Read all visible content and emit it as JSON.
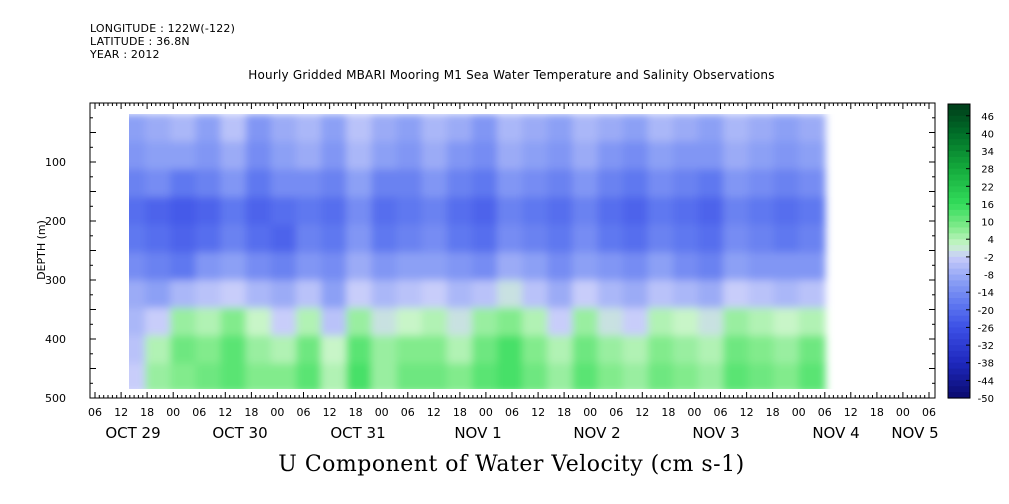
{
  "header": {
    "longitude": "LONGITUDE : 122W(-122)",
    "latitude": "LATITUDE : 36.8N",
    "year": "YEAR : 2012"
  },
  "chart_data": {
    "type": "heatmap",
    "title": "Hourly Gridded MBARI Mooring M1 Sea Water Temperature and Salinity Observations",
    "xlabel": "U Component of Water Velocity (cm s-1)",
    "ylabel": "DEPTH (m)",
    "ylim": [
      500,
      0
    ],
    "y_ticks": [
      100,
      200,
      300,
      400,
      500
    ],
    "x_hour_ticks": [
      "06",
      "12",
      "18",
      "00",
      "06",
      "12",
      "18",
      "00",
      "06",
      "12",
      "18",
      "00",
      "06",
      "12",
      "18",
      "00",
      "06",
      "12",
      "18",
      "00",
      "06",
      "12",
      "18",
      "00",
      "06",
      "12",
      "18",
      "00",
      "06",
      "12",
      "18",
      "00",
      "06"
    ],
    "date_labels": [
      "OCT 29",
      "OCT 30",
      "OCT 31",
      "NOV  1",
      "NOV  2",
      "NOV  3",
      "NOV  4",
      "NOV 5"
    ],
    "colorbar": {
      "levels": [
        "46",
        "40",
        "34",
        "28",
        "22",
        "16",
        "10",
        "4",
        "-2",
        "-8",
        "-14",
        "-20",
        "-26",
        "-32",
        "-38",
        "-44",
        "-50"
      ],
      "min": -50,
      "max": 50
    },
    "data_extent": {
      "time_start": "2012-10-29 12:00",
      "time_end": "2012-11-05 06:00",
      "depth_top": 20,
      "depth_bottom": 490
    },
    "velocity_field": {
      "description_of_values": "U velocity (cm/s) on a time x depth grid; cells listed as [day-column index 0..27 (6-hourly from OCT 29 12:00), depth row 0..9 (every 50 m from 20 m)]",
      "rows_depth_m": [
        20,
        70,
        120,
        170,
        220,
        270,
        320,
        370,
        420,
        470
      ],
      "values": [
        [
          -10,
          -12,
          -16,
          -20,
          -18,
          -14,
          -8,
          -6,
          -4,
          -2
        ],
        [
          -8,
          -10,
          -14,
          -22,
          -20,
          -16,
          -10,
          -2,
          4,
          6
        ],
        [
          -6,
          -10,
          -18,
          -24,
          -22,
          -18,
          -6,
          6,
          10,
          8
        ],
        [
          -10,
          -12,
          -16,
          -22,
          -20,
          -12,
          -4,
          4,
          8,
          10
        ],
        [
          -4,
          -8,
          -12,
          -18,
          -16,
          -10,
          -2,
          8,
          12,
          12
        ],
        [
          -12,
          -14,
          -18,
          -22,
          -20,
          -14,
          -6,
          2,
          6,
          8
        ],
        [
          -8,
          -10,
          -14,
          -20,
          -22,
          -16,
          -8,
          -2,
          4,
          8
        ],
        [
          -6,
          -8,
          -14,
          -18,
          -16,
          -12,
          -4,
          4,
          10,
          12
        ],
        [
          -10,
          -12,
          -16,
          -20,
          -18,
          -14,
          -10,
          -4,
          2,
          4
        ],
        [
          -4,
          -6,
          -10,
          -14,
          -12,
          -8,
          -2,
          6,
          12,
          14
        ],
        [
          -8,
          -10,
          -16,
          -20,
          -18,
          -12,
          -6,
          0,
          6,
          6
        ],
        [
          -10,
          -12,
          -16,
          -18,
          -16,
          -10,
          -4,
          2,
          8,
          10
        ],
        [
          -6,
          -8,
          -12,
          -16,
          -14,
          -10,
          -2,
          4,
          8,
          10
        ],
        [
          -8,
          -12,
          -16,
          -20,
          -18,
          -12,
          -6,
          0,
          4,
          8
        ],
        [
          -12,
          -14,
          -18,
          -22,
          -20,
          -14,
          -4,
          6,
          10,
          12
        ],
        [
          -6,
          -8,
          -12,
          -16,
          -14,
          -8,
          0,
          8,
          14,
          14
        ],
        [
          -8,
          -10,
          -14,
          -18,
          -16,
          -10,
          -4,
          4,
          8,
          10
        ],
        [
          -10,
          -12,
          -16,
          -20,
          -18,
          -14,
          -8,
          -2,
          4,
          6
        ],
        [
          -6,
          -8,
          -12,
          -16,
          -14,
          -10,
          -2,
          6,
          10,
          12
        ],
        [
          -8,
          -12,
          -16,
          -20,
          -18,
          -12,
          -6,
          0,
          6,
          8
        ],
        [
          -10,
          -14,
          -18,
          -22,
          -20,
          -14,
          -8,
          -2,
          4,
          6
        ],
        [
          -6,
          -10,
          -14,
          -18,
          -16,
          -10,
          -4,
          4,
          8,
          10
        ],
        [
          -8,
          -12,
          -16,
          -20,
          -18,
          -14,
          -6,
          2,
          6,
          8
        ],
        [
          -10,
          -12,
          -18,
          -22,
          -20,
          -16,
          -8,
          0,
          4,
          6
        ],
        [
          -6,
          -8,
          -12,
          -16,
          -14,
          -10,
          -2,
          6,
          10,
          12
        ],
        [
          -8,
          -10,
          -14,
          -18,
          -16,
          -12,
          -4,
          4,
          8,
          10
        ],
        [
          -10,
          -12,
          -16,
          -20,
          -18,
          -12,
          -6,
          2,
          6,
          8
        ],
        [
          -8,
          -10,
          -14,
          -18,
          -16,
          -12,
          -4,
          4,
          10,
          12
        ]
      ]
    }
  },
  "colors": {
    "negative_strong": "#00008b",
    "negative_mid": "#3850e0",
    "neutral_neg": "#a8b4f0",
    "neutral_pos": "#c8f0c8",
    "positive_mid": "#30e060",
    "positive_strong": "#004d1a"
  }
}
